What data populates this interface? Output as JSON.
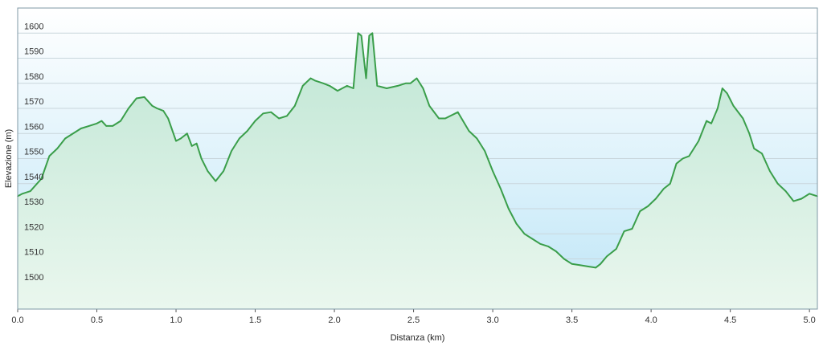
{
  "chart_data": {
    "type": "area",
    "xlabel": "Distanza  (km)",
    "ylabel": "Elevazione (m)",
    "xlim": [
      0,
      5.05
    ],
    "ylim": [
      1490,
      1610
    ],
    "x_ticks": [
      "0.0",
      "0.5",
      "1.0",
      "1.5",
      "2.0",
      "2.5",
      "3.0",
      "3.5",
      "4.0",
      "4.5",
      "5.0"
    ],
    "y_ticks": [
      "1500",
      "1510",
      "1520",
      "1530",
      "1540",
      "1550",
      "1560",
      "1570",
      "1580",
      "1590",
      "1600"
    ],
    "grid": true,
    "colors": {
      "line": "#3a9e4a",
      "fill_top": "#bfe6d4",
      "fill_bottom": "#eaf7ee",
      "bg_top": "#ffffff",
      "bg_bottom": "#bfe6f7",
      "grid": "#c9d6dc",
      "frame": "#7f98a6"
    },
    "series": [
      {
        "x": [
          0.0,
          0.03,
          0.08,
          0.15,
          0.2,
          0.25,
          0.3,
          0.4,
          0.45,
          0.5,
          0.53,
          0.56,
          0.6,
          0.65,
          0.7,
          0.75,
          0.8,
          0.85,
          0.88,
          0.92,
          0.95,
          1.0,
          1.03,
          1.07,
          1.1,
          1.13,
          1.16,
          1.2,
          1.25,
          1.3,
          1.35,
          1.4,
          1.45,
          1.5,
          1.55,
          1.6,
          1.65,
          1.7,
          1.75,
          1.8,
          1.85,
          1.88,
          1.93,
          1.97,
          2.02,
          2.08,
          2.12,
          2.15,
          2.17,
          2.2,
          2.22,
          2.24,
          2.27,
          2.33,
          2.4,
          2.45,
          2.48,
          2.52,
          2.56,
          2.6,
          2.66,
          2.7,
          2.78,
          2.85,
          2.9,
          2.95,
          3.0,
          3.05,
          3.1,
          3.15,
          3.2,
          3.25,
          3.3,
          3.35,
          3.4,
          3.45,
          3.5,
          3.55,
          3.6,
          3.65,
          3.68,
          3.72,
          3.78,
          3.83,
          3.88,
          3.93,
          3.98,
          4.03,
          4.08,
          4.12,
          4.16,
          4.2,
          4.24,
          4.3,
          4.35,
          4.38,
          4.42,
          4.45,
          4.48,
          4.52,
          4.58,
          4.62,
          4.65,
          4.7,
          4.75,
          4.8,
          4.85,
          4.9,
          4.95,
          5.0,
          5.05
        ],
        "values": [
          1535,
          1536,
          1537,
          1542,
          1551,
          1554,
          1558,
          1562,
          1563,
          1564,
          1565,
          1563,
          1563,
          1565,
          1570,
          1574,
          1574.5,
          1571,
          1570,
          1569,
          1566,
          1557,
          1558,
          1560,
          1555,
          1556,
          1550,
          1545,
          1541,
          1545,
          1553,
          1558,
          1561,
          1565,
          1568,
          1568.5,
          1566,
          1567,
          1571,
          1579,
          1582,
          1581,
          1580,
          1579,
          1577,
          1579,
          1578,
          1600,
          1599,
          1582,
          1599,
          1600,
          1579,
          1578,
          1579,
          1580,
          1580,
          1582,
          1578,
          1571,
          1566,
          1566,
          1568.5,
          1561,
          1558,
          1553,
          1545,
          1538,
          1530,
          1524,
          1520,
          1518,
          1516,
          1515,
          1513,
          1510,
          1508,
          1507.5,
          1507,
          1506.5,
          1508,
          1511,
          1514,
          1521,
          1522,
          1529,
          1531,
          1534,
          1538,
          1540,
          1548,
          1550,
          1551,
          1557,
          1565,
          1564,
          1570,
          1578,
          1576,
          1571,
          1566,
          1560,
          1554,
          1552,
          1545,
          1540,
          1537,
          1533,
          1534,
          1536,
          1535
        ]
      }
    ]
  }
}
